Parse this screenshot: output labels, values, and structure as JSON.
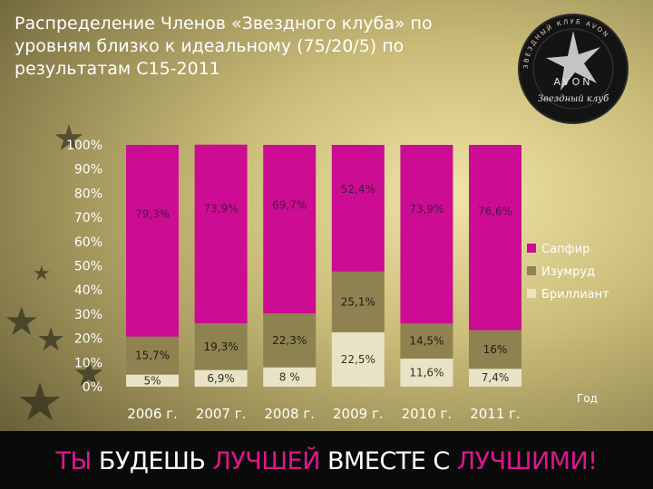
{
  "slide": {
    "title": "Распределение Членов «Звездного клуба» по уровням близко к идеальному (75/20/5) по результатам С15-2011"
  },
  "logo": {
    "brand": "AVON",
    "script_text": "Звездный клуб",
    "ring_text": "ЗВЕЗДНЫЙ КЛУБ AVON"
  },
  "footer": {
    "words": [
      {
        "text": "ТЫ ",
        "color": "#e0168f"
      },
      {
        "text": "БУДЕШЬ ",
        "color": "#ffffff"
      },
      {
        "text": "ЛУЧШЕЙ ",
        "color": "#e0168f"
      },
      {
        "text": "ВМЕСТЕ С ",
        "color": "#ffffff"
      },
      {
        "text": "ЛУЧШИМИ!",
        "color": "#e0168f"
      }
    ]
  },
  "chart_data": {
    "type": "bar",
    "stacked": true,
    "categories": [
      "2006 г.",
      "2007 г.",
      "2008 г.",
      "2009 г.",
      "2010 г.",
      "2011 г."
    ],
    "xlabel": "Год",
    "ylabel": "",
    "ylim": [
      0,
      100
    ],
    "yticks": [
      "0%",
      "10%",
      "20%",
      "30%",
      "40%",
      "50%",
      "60%",
      "70%",
      "80%",
      "90%",
      "100%"
    ],
    "legend_position": "right",
    "series": [
      {
        "name": "Бриллиант",
        "color": "#e8e3c6",
        "values": [
          5,
          6.9,
          8,
          22.5,
          11.6,
          7.4
        ],
        "labels": [
          "5%",
          "6,9%",
          "8 %",
          "22,5%",
          "11,6%",
          "7,4%"
        ]
      },
      {
        "name": "Изумруд",
        "color": "#8e8350",
        "values": [
          15.7,
          19.3,
          22.3,
          25.1,
          14.5,
          16
        ],
        "labels": [
          "15,7%",
          "19,3%",
          "22,3%",
          "25,1%",
          "14,5%",
          "16%"
        ]
      },
      {
        "name": "Сапфир",
        "color": "#cc0c93",
        "values": [
          79.3,
          73.9,
          69.7,
          52.4,
          73.9,
          76.6
        ],
        "labels": [
          "79,3%",
          "73,9%",
          "69,7%",
          "52,4%",
          "73,9%",
          "76,6%"
        ]
      }
    ]
  }
}
